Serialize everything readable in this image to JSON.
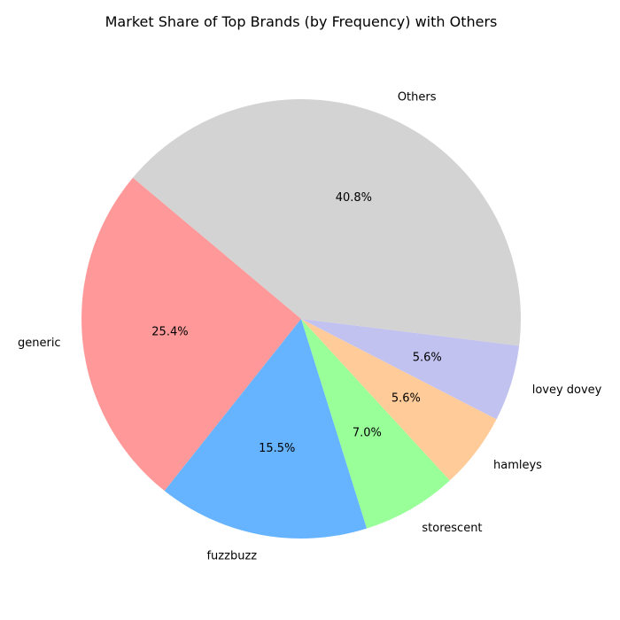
{
  "chart_data": {
    "type": "pie",
    "title": "Market Share of Top Brands (by Frequency) with Others",
    "start_angle_deg": 140,
    "direction": "counterclockwise",
    "slices": [
      {
        "label": "generic",
        "value": 25.4,
        "pct_label": "25.4%",
        "color": "#ff9999"
      },
      {
        "label": "fuzzbuzz",
        "value": 15.5,
        "pct_label": "15.5%",
        "color": "#66b3ff"
      },
      {
        "label": "storescent",
        "value": 7.0,
        "pct_label": "7.0%",
        "color": "#99ff99"
      },
      {
        "label": "hamleys",
        "value": 5.6,
        "pct_label": "5.6%",
        "color": "#ffcc99"
      },
      {
        "label": "lovey dovey",
        "value": 5.6,
        "pct_label": "5.6%",
        "color": "#c2c2f0"
      },
      {
        "label": "Others",
        "value": 40.8,
        "pct_label": "40.8%",
        "color": "#d3d3d3"
      }
    ]
  }
}
